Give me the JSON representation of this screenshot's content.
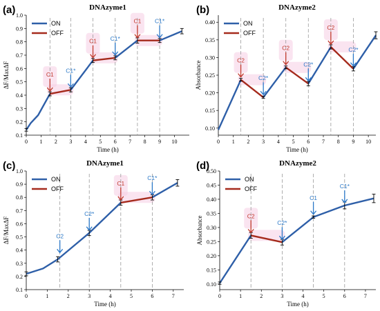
{
  "colors": {
    "on": "#2e5fa8",
    "off": "#a52a1c",
    "c1": "#c0392b",
    "c1s": "#2a78c8",
    "highlight": "#f6cde4",
    "dash": "#9a9a9a"
  },
  "chart_data": [
    {
      "panel": "(a)",
      "type": "line",
      "title": "DNAzyme1",
      "xlabel": "Time (h)",
      "ylabel": "ΔF/MaxΔF",
      "xlim": [
        0,
        11
      ],
      "ylim": [
        0.1,
        1.0
      ],
      "xticks": [
        0,
        1,
        2,
        3,
        4,
        5,
        6,
        7,
        8,
        9,
        10
      ],
      "yticks": [
        0.1,
        0.2,
        0.3,
        0.4,
        0.5,
        0.6,
        0.7,
        0.8,
        0.9,
        1.0
      ],
      "legend": [
        "ON",
        "OFF"
      ],
      "legend_position": "top-left",
      "segments": [
        {
          "state": "on",
          "points": [
            [
              0,
              0.14
            ],
            [
              0.3,
              0.19
            ],
            [
              0.8,
              0.25
            ],
            [
              1.6,
              0.41
            ]
          ]
        },
        {
          "state": "off",
          "points": [
            [
              1.6,
              0.41
            ],
            [
              3.0,
              0.44
            ]
          ]
        },
        {
          "state": "on",
          "points": [
            [
              3.0,
              0.44
            ],
            [
              4.5,
              0.66
            ]
          ]
        },
        {
          "state": "off",
          "points": [
            [
              4.5,
              0.66
            ],
            [
              6.0,
              0.68
            ]
          ]
        },
        {
          "state": "on",
          "points": [
            [
              6.0,
              0.68
            ],
            [
              7.5,
              0.81
            ]
          ]
        },
        {
          "state": "off",
          "points": [
            [
              7.5,
              0.81
            ],
            [
              9.0,
              0.81
            ]
          ]
        },
        {
          "state": "on",
          "points": [
            [
              9.0,
              0.81
            ],
            [
              10.5,
              0.88
            ]
          ]
        }
      ],
      "errorbars": [
        [
          0,
          0.14,
          0.01
        ],
        [
          1.6,
          0.41,
          0.015
        ],
        [
          3.0,
          0.44,
          0.015
        ],
        [
          4.5,
          0.66,
          0.015
        ],
        [
          6.0,
          0.68,
          0.015
        ],
        [
          7.5,
          0.81,
          0.02
        ],
        [
          9.0,
          0.81,
          0.015
        ],
        [
          10.5,
          0.88,
          0.02
        ]
      ],
      "vlines": [
        1.6,
        3.0,
        4.5,
        6.0,
        7.5,
        9.0
      ],
      "annotations": [
        {
          "x": 1.6,
          "y": 0.41,
          "label": "C1",
          "kind": "c1"
        },
        {
          "x": 3.0,
          "y": 0.44,
          "label": "C1*",
          "kind": "c1s"
        },
        {
          "x": 4.5,
          "y": 0.66,
          "label": "C1",
          "kind": "c1"
        },
        {
          "x": 6.0,
          "y": 0.68,
          "label": "C1*",
          "kind": "c1s"
        },
        {
          "x": 7.5,
          "y": 0.81,
          "label": "C1",
          "kind": "c1"
        },
        {
          "x": 9.0,
          "y": 0.81,
          "label": "C1*",
          "kind": "c1s"
        }
      ]
    },
    {
      "panel": "(b)",
      "type": "line",
      "title": "DNAzyme2",
      "xlabel": "Time (h)",
      "ylabel": "Absorbance",
      "xlim": [
        0,
        10.5
      ],
      "ylim": [
        0.08,
        0.42
      ],
      "xticks": [
        0,
        1,
        2,
        3,
        4,
        5,
        6,
        7,
        8,
        9,
        10
      ],
      "yticks": [
        0.1,
        0.15,
        0.2,
        0.25,
        0.3,
        0.35,
        0.4
      ],
      "legend": [
        "ON",
        "OFF"
      ],
      "legend_position": "top-left",
      "segments": [
        {
          "state": "on",
          "points": [
            [
              0,
              0.095
            ],
            [
              1.5,
              0.237
            ]
          ]
        },
        {
          "state": "off",
          "points": [
            [
              1.5,
              0.237
            ],
            [
              3.0,
              0.187
            ]
          ]
        },
        {
          "state": "on",
          "points": [
            [
              3.0,
              0.187
            ],
            [
              4.5,
              0.272
            ]
          ]
        },
        {
          "state": "off",
          "points": [
            [
              4.5,
              0.272
            ],
            [
              6.0,
              0.226
            ]
          ]
        },
        {
          "state": "on",
          "points": [
            [
              6.0,
              0.226
            ],
            [
              7.5,
              0.33
            ]
          ]
        },
        {
          "state": "off",
          "points": [
            [
              7.5,
              0.33
            ],
            [
              9.0,
              0.268
            ]
          ]
        },
        {
          "state": "on",
          "points": [
            [
              9.0,
              0.268
            ],
            [
              10.5,
              0.363
            ]
          ]
        }
      ],
      "errorbars": [
        [
          1.5,
          0.237,
          0.004
        ],
        [
          3.0,
          0.187,
          0.003
        ],
        [
          4.5,
          0.272,
          0.004
        ],
        [
          6.0,
          0.226,
          0.006
        ],
        [
          7.5,
          0.33,
          0.006
        ],
        [
          9.0,
          0.268,
          0.006
        ],
        [
          10.5,
          0.363,
          0.01
        ]
      ],
      "vlines": [
        1.5,
        3.0,
        4.5,
        6.0,
        7.5,
        9.0
      ],
      "annotations": [
        {
          "x": 1.5,
          "y": 0.237,
          "label": "C2",
          "kind": "c1"
        },
        {
          "x": 3.0,
          "y": 0.187,
          "label": "C2*",
          "kind": "c1s"
        },
        {
          "x": 4.5,
          "y": 0.272,
          "label": "C2",
          "kind": "c1"
        },
        {
          "x": 6.0,
          "y": 0.226,
          "label": "C2*",
          "kind": "c1s"
        },
        {
          "x": 7.5,
          "y": 0.33,
          "label": "C2",
          "kind": "c1"
        },
        {
          "x": 9.0,
          "y": 0.268,
          "label": "C2*",
          "kind": "c1s"
        }
      ]
    },
    {
      "panel": "(c)",
      "type": "line",
      "title": "DNAzyme1",
      "xlabel": "Time (h)",
      "ylabel": "ΔF/MaxΔF",
      "xlim": [
        0,
        7.5
      ],
      "ylim": [
        0.1,
        1.0
      ],
      "xticks": [
        0,
        1,
        2,
        3,
        4,
        5,
        6,
        7
      ],
      "yticks": [
        0.1,
        0.2,
        0.3,
        0.4,
        0.5,
        0.6,
        0.7,
        0.8,
        0.9,
        1.0
      ],
      "legend": [
        "ON",
        "OFF"
      ],
      "legend_position": "top-left",
      "segments": [
        {
          "state": "on",
          "points": [
            [
              0,
              0.22
            ],
            [
              0.8,
              0.26
            ],
            [
              1.5,
              0.33
            ],
            [
              3.0,
              0.53
            ],
            [
              4.5,
              0.76
            ]
          ]
        },
        {
          "state": "off",
          "points": [
            [
              4.5,
              0.76
            ],
            [
              6.0,
              0.8
            ]
          ]
        },
        {
          "state": "on",
          "points": [
            [
              6.0,
              0.8
            ],
            [
              7.2,
              0.91
            ]
          ]
        }
      ],
      "errorbars": [
        [
          0,
          0.22,
          0.015
        ],
        [
          1.5,
          0.33,
          0.02
        ],
        [
          3.0,
          0.53,
          0.02
        ],
        [
          4.5,
          0.76,
          0.02
        ],
        [
          6.0,
          0.8,
          0.02
        ],
        [
          7.2,
          0.91,
          0.025
        ]
      ],
      "vlines": [
        1.6,
        3.0,
        4.5,
        6.0
      ],
      "annotations": [
        {
          "x": 1.6,
          "y": 0.36,
          "label": "C2",
          "kind": "c1s"
        },
        {
          "x": 3.0,
          "y": 0.53,
          "label": "C2*",
          "kind": "c1s"
        },
        {
          "x": 4.5,
          "y": 0.76,
          "label": "C1",
          "kind": "c1"
        },
        {
          "x": 6.0,
          "y": 0.8,
          "label": "C1*",
          "kind": "c1s"
        }
      ]
    },
    {
      "panel": "(d)",
      "type": "line",
      "title": "DNAzyme2",
      "xlabel": "Time (h)",
      "ylabel": "Absorbance",
      "xlim": [
        0,
        7.5
      ],
      "ylim": [
        0.08,
        0.5
      ],
      "xticks": [
        0,
        1,
        2,
        3,
        4,
        5,
        6,
        7
      ],
      "yticks": [
        0.1,
        0.15,
        0.2,
        0.25,
        0.3,
        0.35,
        0.4,
        0.45,
        0.5
      ],
      "legend": [
        "ON",
        "OFF"
      ],
      "legend_position": "top-left",
      "segments": [
        {
          "state": "on",
          "points": [
            [
              0,
              0.103
            ],
            [
              1.5,
              0.272
            ]
          ]
        },
        {
          "state": "off",
          "points": [
            [
              1.5,
              0.272
            ],
            [
              3.0,
              0.248
            ]
          ]
        },
        {
          "state": "on",
          "points": [
            [
              3.0,
              0.248
            ],
            [
              4.5,
              0.337
            ],
            [
              6.0,
              0.378
            ],
            [
              7.4,
              0.403
            ]
          ]
        }
      ],
      "errorbars": [
        [
          0,
          0.103,
          0.004
        ],
        [
          1.5,
          0.272,
          0.01
        ],
        [
          3.0,
          0.248,
          0.01
        ],
        [
          4.5,
          0.337,
          0.004
        ],
        [
          6.0,
          0.378,
          0.012
        ],
        [
          7.4,
          0.403,
          0.015
        ]
      ],
      "vlines": [
        1.5,
        3.0,
        4.5,
        6.0
      ],
      "annotations": [
        {
          "x": 1.5,
          "y": 0.272,
          "label": "C2",
          "kind": "c1"
        },
        {
          "x": 3.0,
          "y": 0.248,
          "label": "C2*",
          "kind": "c1s"
        },
        {
          "x": 4.5,
          "y": 0.337,
          "label": "C1",
          "kind": "c1s"
        },
        {
          "x": 6.0,
          "y": 0.378,
          "label": "C1*",
          "kind": "c1s"
        }
      ]
    }
  ]
}
